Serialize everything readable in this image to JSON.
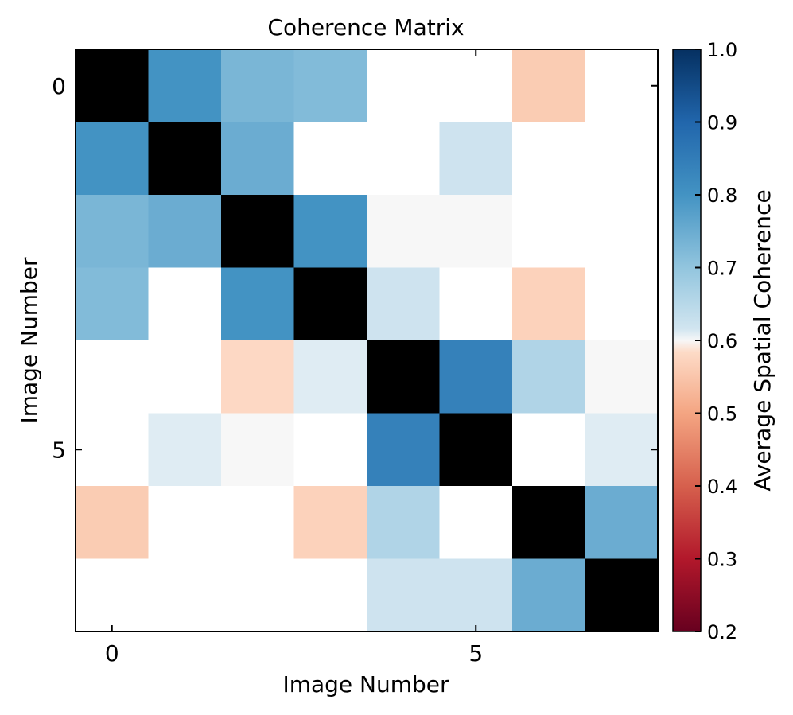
{
  "chart_data": {
    "type": "heatmap",
    "title": "Coherence Matrix",
    "xlabel": "Image Number",
    "ylabel": "Image Number",
    "x_ticks": [
      "0",
      "5"
    ],
    "y_ticks": [
      "0",
      "5"
    ],
    "size": 8,
    "colorbar": {
      "label": "Average Spatial Coherence",
      "range": [
        0.2,
        1.0
      ],
      "ticks": [
        "1.0",
        "0.9",
        "0.8",
        "0.7",
        "0.6",
        "0.5",
        "0.4",
        "0.3",
        "0.2"
      ],
      "colormap": "RdBu",
      "white_band": [
        0.7,
        0.7
      ]
    },
    "diagonal_color": "#000000",
    "masked_color": "#ffffff",
    "values": [
      [
        1.0,
        0.8,
        0.73,
        0.72,
        null,
        null,
        0.56,
        null
      ],
      [
        0.8,
        1.0,
        0.75,
        null,
        null,
        0.62,
        null,
        null
      ],
      [
        0.73,
        0.75,
        1.0,
        0.8,
        0.6,
        0.6,
        null,
        null
      ],
      [
        0.72,
        null,
        0.8,
        1.0,
        0.62,
        null,
        0.57,
        null
      ],
      [
        null,
        null,
        0.58,
        0.61,
        1.0,
        0.84,
        0.66,
        0.6
      ],
      [
        null,
        0.61,
        0.6,
        null,
        0.84,
        1.0,
        null,
        0.61
      ],
      [
        0.56,
        null,
        null,
        0.57,
        0.66,
        null,
        1.0,
        0.75
      ],
      [
        null,
        null,
        null,
        null,
        0.62,
        0.62,
        0.75,
        1.0
      ]
    ]
  }
}
